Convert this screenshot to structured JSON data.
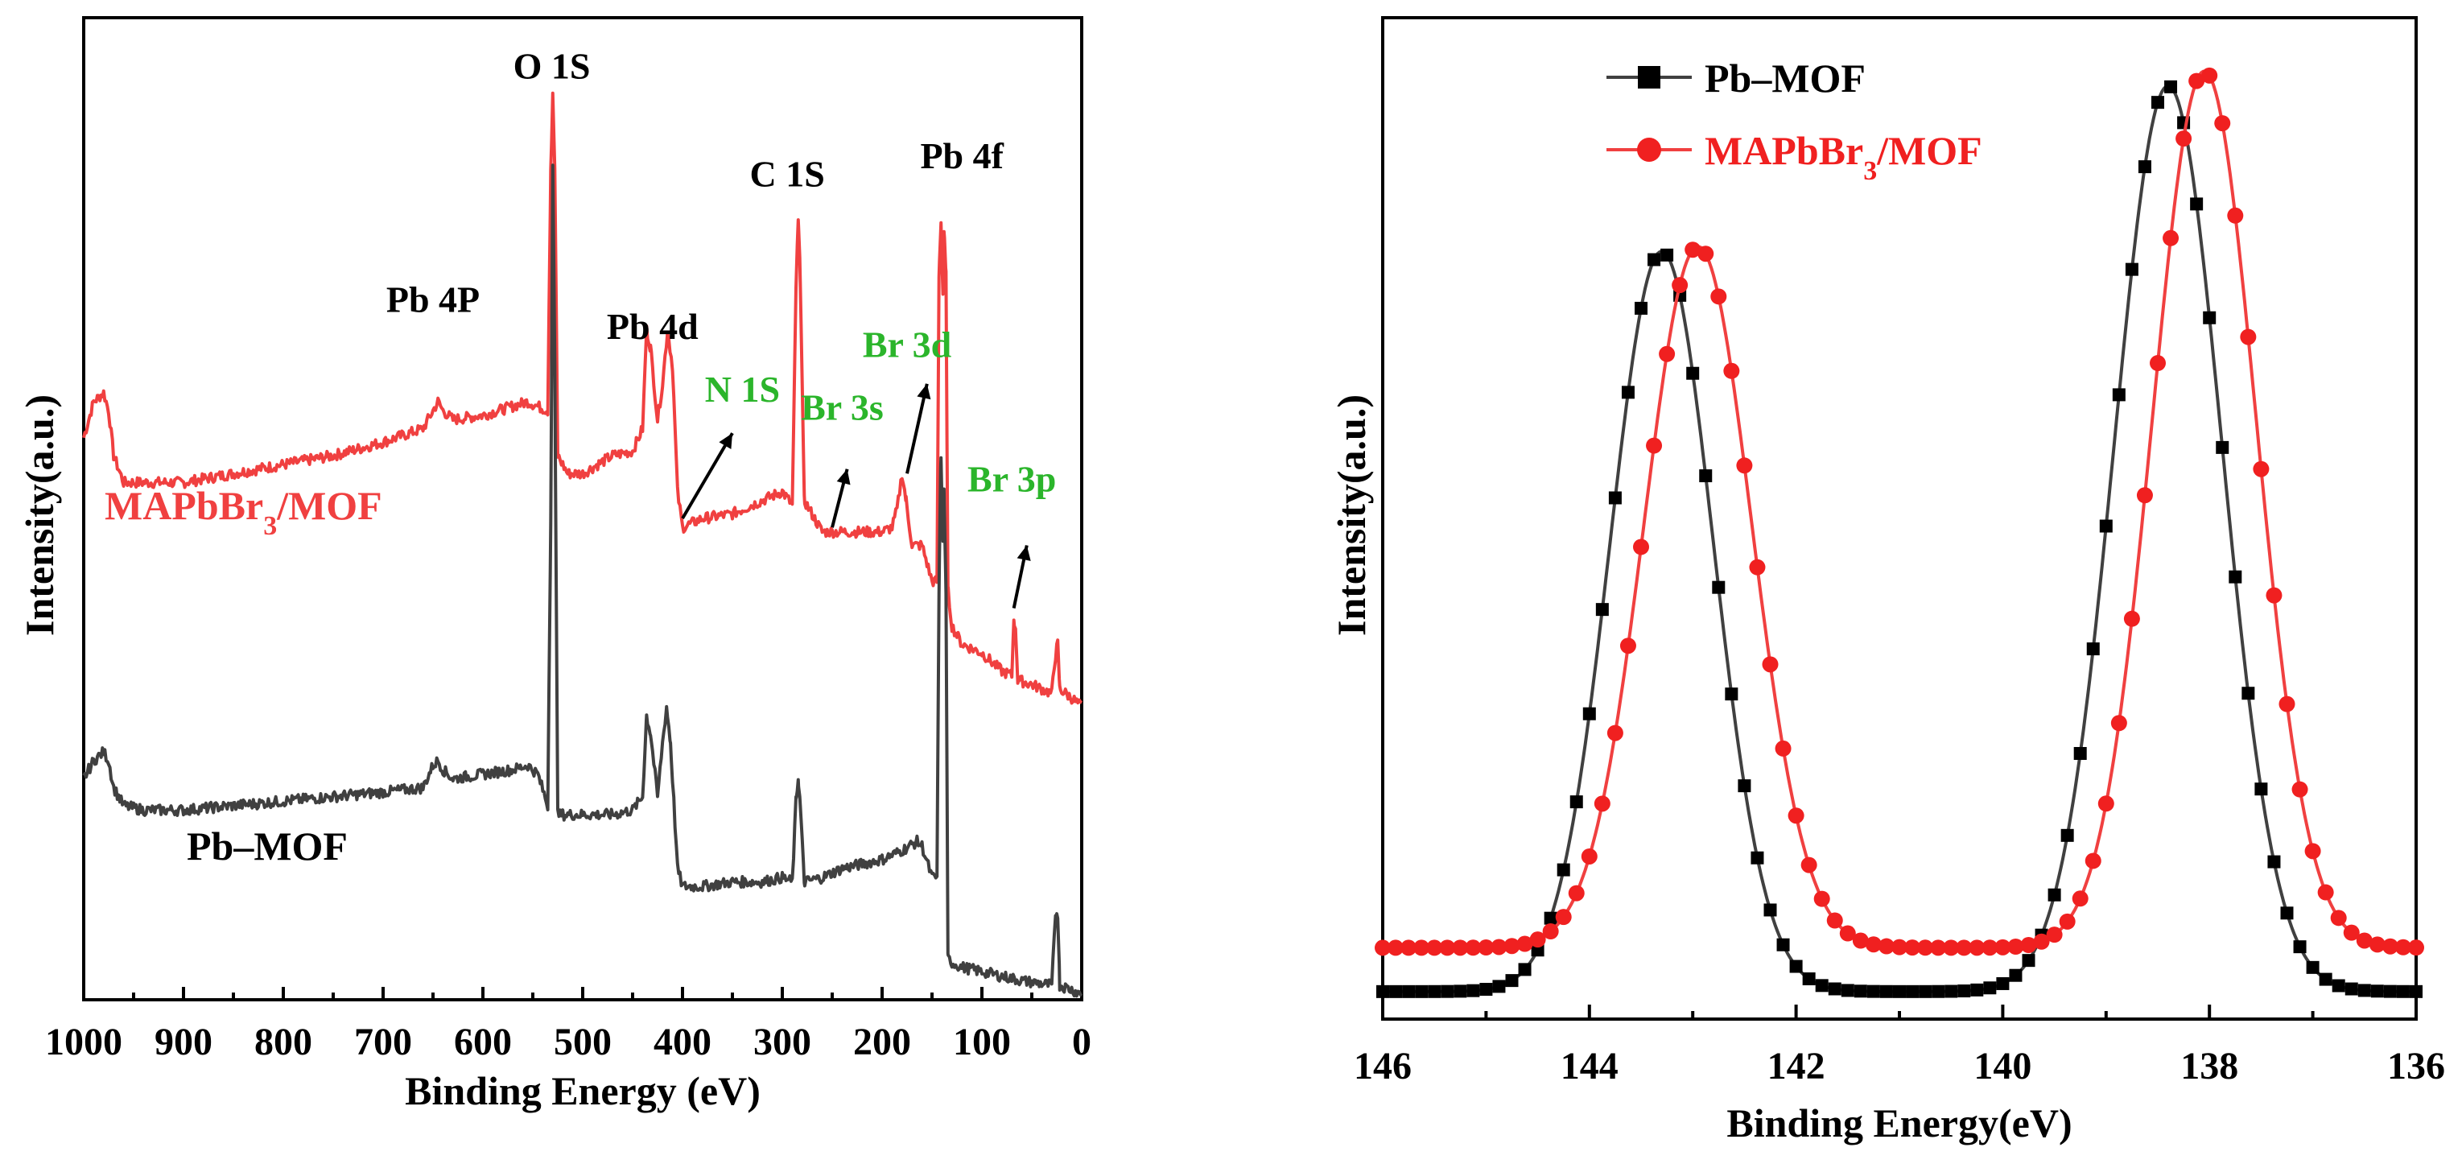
{
  "colors": {
    "pb_mof": "#404040",
    "mapbbr3_mof": "#f04040",
    "annotation_green": "#2bb52b",
    "black": "#000000"
  },
  "chart_data": [
    {
      "type": "line",
      "title": "",
      "xlabel": "Binding Energy (eV)",
      "ylabel": "Intensity(a.u.)",
      "xlim": [
        1000,
        0
      ],
      "x_reversed": true,
      "x_ticks": [
        1000,
        900,
        800,
        700,
        600,
        500,
        400,
        300,
        200,
        100,
        0
      ],
      "x_tick_labels": [
        "1000",
        "900",
        "800",
        "700",
        "600",
        "500",
        "400",
        "300",
        "200",
        "100",
        "0"
      ],
      "y_ticks_shown": false,
      "series": [
        {
          "name": "MAPbBr3/MOF",
          "label_main": "MAPbBr",
          "label_sub": "3",
          "label_tail": "/MOF",
          "color": "#f04040",
          "points": [
            [
              1000,
              0.62
            ],
            [
              990,
              0.66
            ],
            [
              980,
              0.67
            ],
            [
              975,
              0.65
            ],
            [
              970,
              0.6
            ],
            [
              960,
              0.57
            ],
            [
              940,
              0.57
            ],
            [
              900,
              0.57
            ],
            [
              850,
              0.58
            ],
            [
              800,
              0.59
            ],
            [
              750,
              0.6
            ],
            [
              700,
              0.615
            ],
            [
              660,
              0.63
            ],
            [
              650,
              0.65
            ],
            [
              645,
              0.66
            ],
            [
              640,
              0.65
            ],
            [
              630,
              0.64
            ],
            [
              600,
              0.645
            ],
            [
              570,
              0.655
            ],
            [
              555,
              0.66
            ],
            [
              545,
              0.655
            ],
            [
              535,
              0.65
            ],
            [
              532,
              0.92
            ],
            [
              530,
              1.0
            ],
            [
              528,
              0.92
            ],
            [
              525,
              0.6
            ],
            [
              515,
              0.58
            ],
            [
              500,
              0.58
            ],
            [
              470,
              0.6
            ],
            [
              450,
              0.605
            ],
            [
              440,
              0.63
            ],
            [
              436,
              0.74
            ],
            [
              432,
              0.72
            ],
            [
              425,
              0.64
            ],
            [
              420,
              0.68
            ],
            [
              415,
              0.74
            ],
            [
              410,
              0.7
            ],
            [
              405,
              0.56
            ],
            [
              400,
              0.52
            ],
            [
              380,
              0.53
            ],
            [
              350,
              0.535
            ],
            [
              320,
              0.55
            ],
            [
              300,
              0.56
            ],
            [
              290,
              0.545
            ],
            [
              286,
              0.8
            ],
            [
              284,
              0.86
            ],
            [
              282,
              0.8
            ],
            [
              278,
              0.55
            ],
            [
              260,
              0.515
            ],
            [
              240,
              0.515
            ],
            [
              220,
              0.515
            ],
            [
              200,
              0.515
            ],
            [
              190,
              0.52
            ],
            [
              185,
              0.54
            ],
            [
              180,
              0.58
            ],
            [
              176,
              0.55
            ],
            [
              170,
              0.5
            ],
            [
              160,
              0.5
            ],
            [
              150,
              0.46
            ],
            [
              145,
              0.46
            ],
            [
              143,
              0.8
            ],
            [
              141,
              0.86
            ],
            [
              139,
              0.78
            ],
            [
              138,
              0.85
            ],
            [
              136,
              0.8
            ],
            [
              134,
              0.45
            ],
            [
              130,
              0.41
            ],
            [
              120,
              0.39
            ],
            [
              100,
              0.38
            ],
            [
              80,
              0.36
            ],
            [
              70,
              0.355
            ],
            [
              68,
              0.42
            ],
            [
              66,
              0.4
            ],
            [
              64,
              0.35
            ],
            [
              50,
              0.345
            ],
            [
              30,
              0.335
            ],
            [
              26,
              0.38
            ],
            [
              24,
              0.39
            ],
            [
              22,
              0.34
            ],
            [
              10,
              0.33
            ],
            [
              0,
              0.32
            ]
          ]
        },
        {
          "name": "Pb–MOF",
          "label_main": "Pb–MOF",
          "color": "#404040",
          "points": [
            [
              1000,
              0.24
            ],
            [
              990,
              0.26
            ],
            [
              980,
              0.27
            ],
            [
              975,
              0.26
            ],
            [
              970,
              0.23
            ],
            [
              960,
              0.21
            ],
            [
              940,
              0.205
            ],
            [
              900,
              0.205
            ],
            [
              850,
              0.21
            ],
            [
              800,
              0.215
            ],
            [
              750,
              0.22
            ],
            [
              700,
              0.225
            ],
            [
              660,
              0.23
            ],
            [
              650,
              0.255
            ],
            [
              645,
              0.26
            ],
            [
              640,
              0.25
            ],
            [
              630,
              0.24
            ],
            [
              600,
              0.245
            ],
            [
              570,
              0.25
            ],
            [
              555,
              0.255
            ],
            [
              545,
              0.245
            ],
            [
              535,
              0.21
            ],
            [
              532,
              0.53
            ],
            [
              530,
              0.92
            ],
            [
              528,
              0.7
            ],
            [
              525,
              0.2
            ],
            [
              515,
              0.2
            ],
            [
              500,
              0.2
            ],
            [
              470,
              0.2
            ],
            [
              450,
              0.205
            ],
            [
              440,
              0.22
            ],
            [
              436,
              0.31
            ],
            [
              432,
              0.29
            ],
            [
              425,
              0.22
            ],
            [
              420,
              0.28
            ],
            [
              416,
              0.32
            ],
            [
              412,
              0.28
            ],
            [
              405,
              0.14
            ],
            [
              400,
              0.12
            ],
            [
              380,
              0.12
            ],
            [
              350,
              0.125
            ],
            [
              320,
              0.125
            ],
            [
              300,
              0.13
            ],
            [
              290,
              0.125
            ],
            [
              286,
              0.22
            ],
            [
              284,
              0.24
            ],
            [
              282,
              0.21
            ],
            [
              278,
              0.125
            ],
            [
              260,
              0.13
            ],
            [
              240,
              0.14
            ],
            [
              220,
              0.145
            ],
            [
              200,
              0.15
            ],
            [
              180,
              0.16
            ],
            [
              165,
              0.17
            ],
            [
              160,
              0.165
            ],
            [
              150,
              0.13
            ],
            [
              145,
              0.13
            ],
            [
              143,
              0.45
            ],
            [
              141,
              0.6
            ],
            [
              139,
              0.5
            ],
            [
              138,
              0.56
            ],
            [
              136,
              0.45
            ],
            [
              134,
              0.04
            ],
            [
              130,
              0.035
            ],
            [
              120,
              0.03
            ],
            [
              100,
              0.025
            ],
            [
              80,
              0.02
            ],
            [
              60,
              0.015
            ],
            [
              30,
              0.01
            ],
            [
              26,
              0.09
            ],
            [
              24,
              0.09
            ],
            [
              22,
              0.01
            ],
            [
              10,
              0.005
            ],
            [
              0,
              0.0
            ]
          ]
        }
      ],
      "peak_labels": [
        {
          "text": "O 1S",
          "x": 531,
          "y": 1.02,
          "color": "#000000"
        },
        {
          "text": "C 1S",
          "x": 295,
          "y": 0.9,
          "color": "#000000"
        },
        {
          "text": "Pb 4f",
          "x": 120,
          "y": 0.92,
          "color": "#000000"
        },
        {
          "text": "Pb 4P",
          "x": 650,
          "y": 0.76,
          "color": "#000000"
        },
        {
          "text": "Pb 4d",
          "x": 430,
          "y": 0.73,
          "color": "#000000"
        },
        {
          "text": "N 1S",
          "x": 340,
          "y": 0.66,
          "color": "#2bb52b"
        },
        {
          "text": "Br 3s",
          "x": 240,
          "y": 0.64,
          "color": "#2bb52b"
        },
        {
          "text": "Br 3d",
          "x": 175,
          "y": 0.71,
          "color": "#2bb52b"
        },
        {
          "text": "Br 3p",
          "x": 70,
          "y": 0.56,
          "color": "#2bb52b"
        }
      ],
      "arrows": [
        {
          "from": [
            400,
            0.53
          ],
          "to": [
            350,
            0.625
          ]
        },
        {
          "from": [
            250,
            0.52
          ],
          "to": [
            235,
            0.585
          ]
        },
        {
          "from": [
            175,
            0.58
          ],
          "to": [
            155,
            0.68
          ]
        },
        {
          "from": [
            68,
            0.43
          ],
          "to": [
            55,
            0.5
          ]
        }
      ]
    },
    {
      "type": "scatter",
      "title": "",
      "xlabel": "Binding Energy(eV)",
      "ylabel": "Intensity(a.u.)",
      "xlim": [
        146,
        136
      ],
      "x_reversed": true,
      "x_ticks": [
        146,
        144,
        142,
        140,
        138,
        136
      ],
      "x_tick_labels": [
        "146",
        "144",
        "142",
        "140",
        "138",
        "136"
      ],
      "y_ticks_shown": false,
      "legend": {
        "placement": "top-left"
      },
      "series": [
        {
          "name": "Pb–MOF",
          "label_main": "Pb–MOF",
          "color": "#000000",
          "line_color": "#404040",
          "marker": "square",
          "baseline": 0.015,
          "peaks": [
            {
              "center": 143.3,
              "height": 0.76,
              "sigma": 0.5
            },
            {
              "center": 138.4,
              "height": 0.93,
              "sigma": 0.52
            }
          ]
        },
        {
          "name": "MAPbBr3/MOF",
          "label_main": "MAPbBr",
          "label_sub": "3",
          "label_tail": "/MOF",
          "color": "#f02020",
          "line_color": "#f04040",
          "marker": "circle",
          "baseline": 0.06,
          "peaks": [
            {
              "center": 142.95,
              "height": 0.72,
              "sigma": 0.52
            },
            {
              "center": 138.05,
              "height": 0.9,
              "sigma": 0.5
            }
          ]
        }
      ]
    }
  ]
}
